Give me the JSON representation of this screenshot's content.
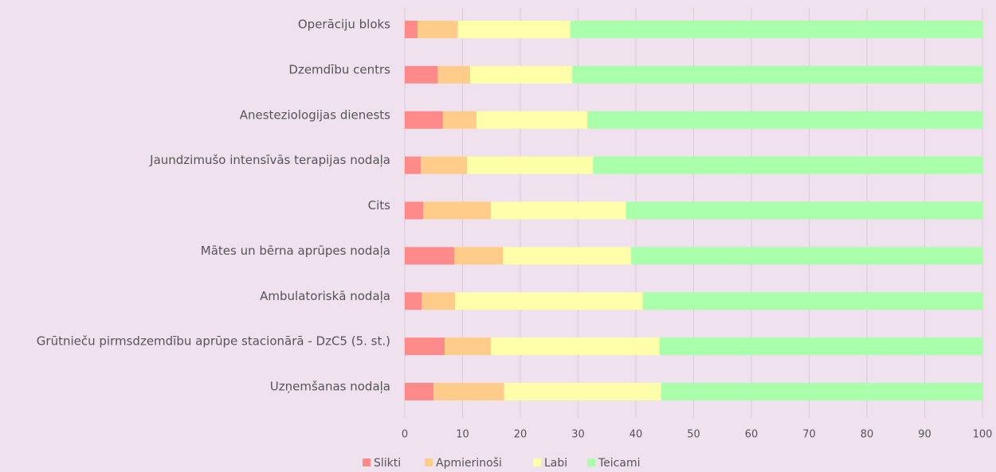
{
  "chart_data": {
    "type": "stacked-barh",
    "categories": [
      "Operāciju bloks",
      "Dzemdību centrs",
      "Anesteziologijas dienests",
      "Jaundzimušo intensīvās terapijas nodaļa",
      "Cits",
      "Mātes un bērna aprūpes nodaļa",
      "Ambulatoriskā nodaļa",
      "Grūtnieču pirmsdzemdību aprūpe stacionārā - DzC5 (5. st.)",
      "Uzņemšanas nodaļa"
    ],
    "series": [
      {
        "name": "Slikti",
        "color": "#ff8a8a",
        "values": [
          2.2,
          5.7,
          6.6,
          2.8,
          3.2,
          8.6,
          2.9,
          6.9,
          5.0
        ]
      },
      {
        "name": "Apmierinoši",
        "color": "#ffcc8a",
        "values": [
          7.0,
          5.6,
          5.8,
          8.0,
          11.7,
          8.4,
          5.8,
          8.0,
          12.2
        ]
      },
      {
        "name": "Labi",
        "color": "#ffffaa",
        "values": [
          19.5,
          17.7,
          19.2,
          21.8,
          23.4,
          22.2,
          32.5,
          29.2,
          27.2
        ]
      },
      {
        "name": "Teicami",
        "color": "#aaffaa",
        "values": [
          71.3,
          71.0,
          68.4,
          67.4,
          61.7,
          60.8,
          58.8,
          55.9,
          55.6
        ]
      }
    ],
    "xlim": [
      0,
      100
    ],
    "xticks": [
      0,
      10,
      20,
      30,
      40,
      50,
      60,
      70,
      80,
      90,
      100
    ],
    "grid": true,
    "legend": "bottom"
  }
}
